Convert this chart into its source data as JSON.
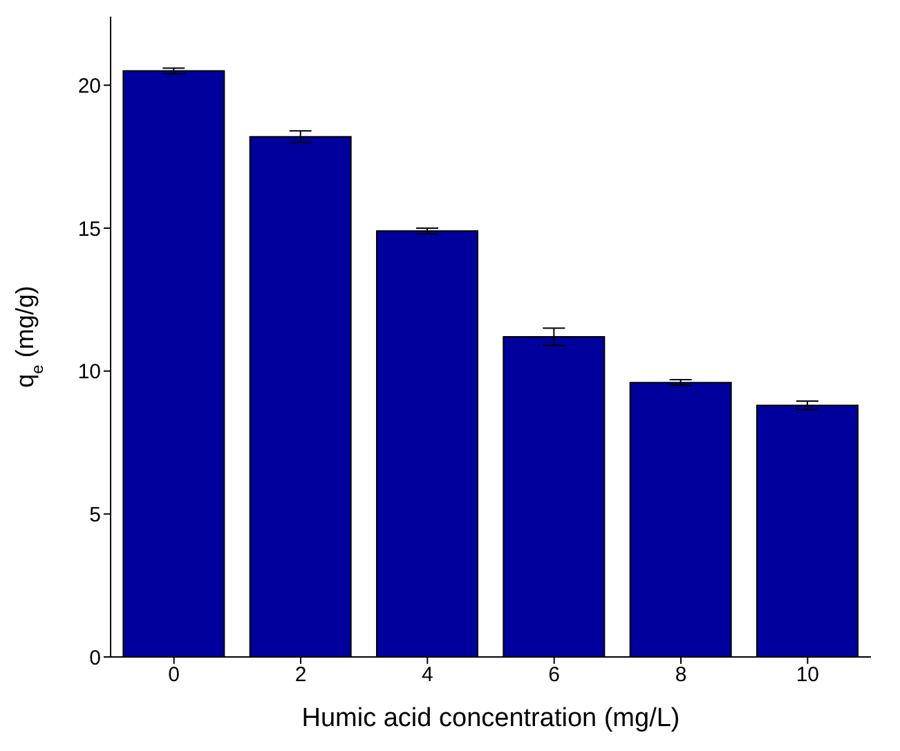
{
  "chart_data": {
    "type": "bar",
    "xlabel": "Humic acid concentration (mg/L)",
    "ylabel": "q$_{e}$ (mg/g)",
    "categories": [
      "0",
      "2",
      "4",
      "6",
      "8",
      "10"
    ],
    "values": [
      20.5,
      18.2,
      14.9,
      11.2,
      9.6,
      8.8
    ],
    "errors": [
      0.1,
      0.2,
      0.1,
      0.3,
      0.1,
      0.15
    ],
    "color": "#00009c",
    "ylim": [
      0,
      22.4
    ],
    "yticks": [
      0,
      5,
      10,
      15,
      20
    ],
    "grid": false,
    "legend": false
  }
}
